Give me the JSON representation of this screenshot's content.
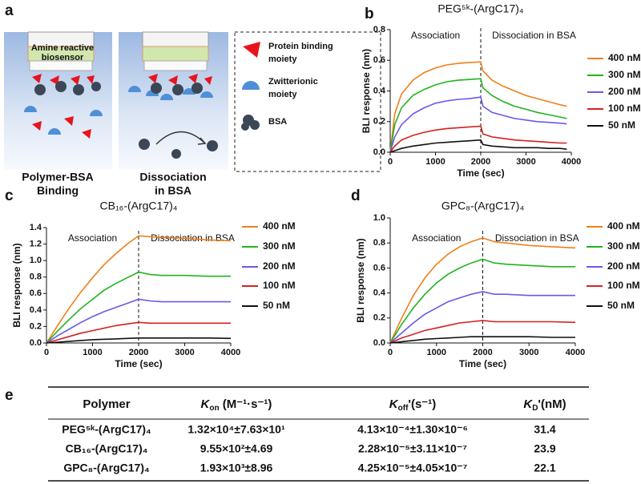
{
  "panel_labels": [
    "a",
    "b",
    "c",
    "d",
    "e"
  ],
  "schematic": {
    "sensor_label": [
      "Amine reactive",
      "biosensor"
    ],
    "legend": [
      [
        "Protein binding",
        "moiety"
      ],
      [
        "Zwitterionic",
        "moiety"
      ],
      [
        "BSA"
      ]
    ],
    "captions": [
      [
        "Polymer-BSA",
        "Binding"
      ],
      [
        "Dissociation",
        "in BSA"
      ]
    ]
  },
  "chart_data": [
    {
      "type": "line",
      "title": "PEG⁵ᵏ-(ArgC17)₄",
      "x_label": "Time (sec)",
      "y_label": "BLI response (nm)",
      "annotations": [
        "Association",
        "Dissociation in BSA"
      ],
      "divider_x": 2000,
      "xlim": [
        0,
        4000
      ],
      "xticks": [
        0,
        1000,
        2000,
        3000,
        4000
      ],
      "ylim": [
        0,
        0.8
      ],
      "yticks": [
        {
          "value": 0,
          "label": "0.0"
        },
        0.2,
        0.4,
        0.6,
        0.8
      ],
      "x": [
        0,
        100,
        250,
        500,
        750,
        1000,
        1250,
        1500,
        1750,
        2000,
        2050,
        2250,
        2500,
        2750,
        3000,
        3250,
        3500,
        3750,
        3900
      ],
      "series": [
        {
          "name": "400 nM",
          "color": "#f07f1b",
          "values": [
            0,
            0.25,
            0.38,
            0.47,
            0.52,
            0.55,
            0.57,
            0.58,
            0.585,
            0.59,
            0.53,
            0.47,
            0.43,
            0.4,
            0.37,
            0.35,
            0.33,
            0.31,
            0.3
          ]
        },
        {
          "name": "300 nM",
          "color": "#21b41e",
          "values": [
            0,
            0.18,
            0.29,
            0.37,
            0.41,
            0.44,
            0.46,
            0.47,
            0.475,
            0.48,
            0.42,
            0.37,
            0.33,
            0.3,
            0.28,
            0.26,
            0.245,
            0.23,
            0.22
          ]
        },
        {
          "name": "200 nM",
          "color": "#6a5ae6",
          "values": [
            0,
            0.1,
            0.18,
            0.25,
            0.29,
            0.32,
            0.335,
            0.345,
            0.35,
            0.36,
            0.3,
            0.26,
            0.24,
            0.22,
            0.21,
            0.2,
            0.195,
            0.19,
            0.185
          ]
        },
        {
          "name": "100 nM",
          "color": "#d62020",
          "values": [
            0,
            0.04,
            0.08,
            0.11,
            0.13,
            0.145,
            0.155,
            0.16,
            0.165,
            0.17,
            0.12,
            0.1,
            0.09,
            0.08,
            0.075,
            0.07,
            0.065,
            0.06,
            0.06
          ]
        },
        {
          "name": "50 nM",
          "color": "#111111",
          "values": [
            0,
            0.01,
            0.025,
            0.04,
            0.05,
            0.06,
            0.065,
            0.07,
            0.075,
            0.08,
            0.05,
            0.04,
            0.035,
            0.03,
            0.03,
            0.03,
            0.025,
            0.025,
            0.02
          ]
        }
      ]
    },
    {
      "type": "line",
      "title": "CB₁₆-(ArgC17)₄",
      "x_label": "Time (sec)",
      "y_label": "BLI response (nm)",
      "annotations": [
        "Association",
        "Dissociation in BSA"
      ],
      "divider_x": 2000,
      "xlim": [
        0,
        4000
      ],
      "xticks": [
        0,
        1000,
        2000,
        3000,
        4000
      ],
      "ylim": [
        0,
        1.4
      ],
      "yticks": [
        {
          "value": 0,
          "label": "0.0"
        },
        0.2,
        0.4,
        0.6,
        0.8,
        {
          "value": 1,
          "label": "1.0"
        },
        1.2,
        1.4
      ],
      "x": [
        0,
        250,
        500,
        750,
        1000,
        1250,
        1500,
        1750,
        2000,
        2250,
        2500,
        3000,
        3500,
        4000
      ],
      "series": [
        {
          "name": "400 nM",
          "color": "#f07f1b",
          "values": [
            0,
            0.22,
            0.43,
            0.62,
            0.79,
            0.95,
            1.08,
            1.2,
            1.3,
            1.29,
            1.28,
            1.27,
            1.25,
            1.24
          ]
        },
        {
          "name": "300 nM",
          "color": "#21b41e",
          "values": [
            0,
            0.15,
            0.29,
            0.42,
            0.53,
            0.64,
            0.72,
            0.79,
            0.86,
            0.83,
            0.82,
            0.82,
            0.81,
            0.81
          ]
        },
        {
          "name": "200 nM",
          "color": "#6a5ae6",
          "values": [
            0,
            0.09,
            0.17,
            0.25,
            0.32,
            0.38,
            0.43,
            0.48,
            0.53,
            0.51,
            0.5,
            0.5,
            0.5,
            0.5
          ]
        },
        {
          "name": "100 nM",
          "color": "#d62020",
          "values": [
            0,
            0.04,
            0.08,
            0.12,
            0.15,
            0.18,
            0.21,
            0.23,
            0.25,
            0.24,
            0.24,
            0.24,
            0.24,
            0.24
          ]
        },
        {
          "name": "50 nM",
          "color": "#111111",
          "values": [
            0,
            0.01,
            0.02,
            0.03,
            0.04,
            0.045,
            0.05,
            0.055,
            0.06,
            0.06,
            0.06,
            0.06,
            0.06,
            0.055
          ]
        }
      ]
    },
    {
      "type": "line",
      "title": "GPC₈-(ArgC17)₄",
      "x_label": "Time (sec)",
      "y_label": "BLI response (nm)",
      "annotations": [
        "Association",
        "Dissociation in BSA"
      ],
      "divider_x": 2000,
      "xlim": [
        0,
        4000
      ],
      "xticks": [
        0,
        1000,
        2000,
        3000,
        4000
      ],
      "ylim": [
        0,
        1
      ],
      "yticks": [
        {
          "value": 0,
          "label": "0.0"
        },
        0.2,
        0.4,
        0.6,
        0.8,
        {
          "value": 1,
          "label": "1.0"
        }
      ],
      "x": [
        0,
        250,
        500,
        750,
        1000,
        1250,
        1500,
        1750,
        2000,
        2250,
        2500,
        3000,
        3500,
        4000
      ],
      "series": [
        {
          "name": "400 nM",
          "color": "#f07f1b",
          "values": [
            0,
            0.2,
            0.38,
            0.52,
            0.63,
            0.71,
            0.77,
            0.81,
            0.84,
            0.81,
            0.8,
            0.78,
            0.77,
            0.76
          ]
        },
        {
          "name": "300 nM",
          "color": "#21b41e",
          "values": [
            0,
            0.15,
            0.28,
            0.39,
            0.48,
            0.55,
            0.6,
            0.64,
            0.67,
            0.64,
            0.63,
            0.62,
            0.61,
            0.61
          ]
        },
        {
          "name": "200 nM",
          "color": "#6a5ae6",
          "values": [
            0,
            0.08,
            0.16,
            0.23,
            0.28,
            0.33,
            0.36,
            0.39,
            0.41,
            0.39,
            0.39,
            0.38,
            0.38,
            0.38
          ]
        },
        {
          "name": "100 nM",
          "color": "#d62020",
          "values": [
            0,
            0.04,
            0.07,
            0.1,
            0.12,
            0.14,
            0.16,
            0.17,
            0.18,
            0.17,
            0.17,
            0.17,
            0.17,
            0.165
          ]
        },
        {
          "name": "50 nM",
          "color": "#111111",
          "values": [
            0,
            0.01,
            0.02,
            0.03,
            0.035,
            0.04,
            0.045,
            0.05,
            0.05,
            0.05,
            0.05,
            0.05,
            0.045,
            0.045
          ]
        }
      ]
    }
  ],
  "table": {
    "headers": [
      "Polymer",
      {
        "symbol": "K",
        "sub": "on",
        "rest": " (M⁻¹·s⁻¹)"
      },
      {
        "symbol": "K",
        "sub": "off",
        "rest": "'(s⁻¹)"
      },
      {
        "symbol": "K",
        "sub": "D",
        "rest": "'(nM)"
      }
    ],
    "rows": [
      [
        "PEG⁵ᵏ-(ArgC17)₄",
        "1.32×10⁴±7.63×10¹",
        "4.13×10⁻⁴±1.30×10⁻⁶",
        31.4
      ],
      [
        "CB₁₆-(ArgC17)₄",
        "9.55×10²±4.69",
        "2.28×10⁻⁵±3.11×10⁻⁷",
        23.9
      ],
      [
        "GPC₈-(ArgC17)₄",
        "1.93×10³±8.96",
        "4.25×10⁻⁵±4.05×10⁻⁷",
        22.1
      ]
    ]
  }
}
